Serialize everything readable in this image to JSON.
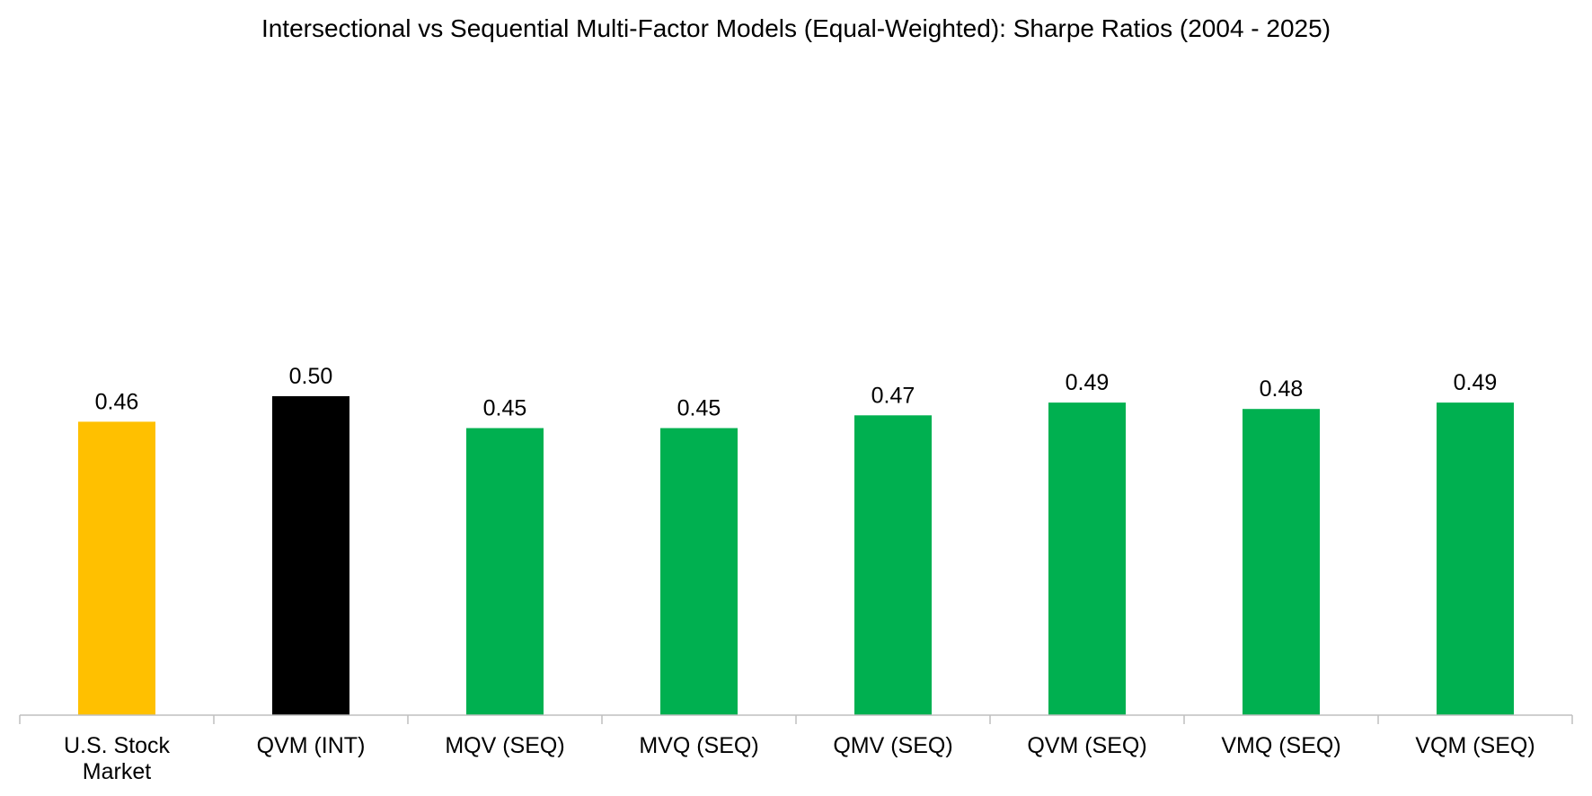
{
  "chart_data": {
    "type": "bar",
    "title": "Intersectional vs Sequential Multi-Factor Models (Equal-Weighted): Sharpe Ratios (2004 - 2025)",
    "xlabel": "",
    "ylabel": "",
    "ylim": [
      0,
      0.6
    ],
    "grid": false,
    "legend": "none",
    "categories": [
      "U.S. Stock Market",
      "QVM (INT)",
      "MQV (SEQ)",
      "MVQ (SEQ)",
      "QMV (SEQ)",
      "QVM (SEQ)",
      "VMQ (SEQ)",
      "VQM (SEQ)"
    ],
    "values": [
      0.46,
      0.5,
      0.45,
      0.45,
      0.47,
      0.49,
      0.48,
      0.49
    ],
    "data_labels": [
      "0.46",
      "0.50",
      "0.45",
      "0.45",
      "0.47",
      "0.49",
      "0.48",
      "0.49"
    ],
    "bar_colors": [
      "#FFC000",
      "#000000",
      "#00B050",
      "#00B050",
      "#00B050",
      "#00B050",
      "#00B050",
      "#00B050"
    ]
  }
}
